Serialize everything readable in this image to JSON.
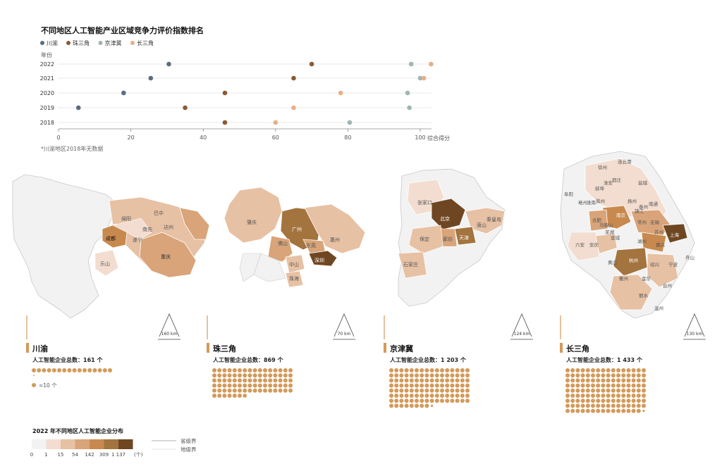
{
  "chart_data": {
    "type": "scatter",
    "title": "不同地区人工智能产业区域竞争力评价指数排名",
    "ylabel": "年份",
    "xlabel": "综合得分",
    "xlim": [
      0,
      100
    ],
    "x_ticks": [
      "0",
      "20",
      "40",
      "60",
      "80",
      "100"
    ],
    "years": [
      "2022",
      "2021",
      "2020",
      "2019",
      "2018"
    ],
    "series": [
      {
        "name": "川渝",
        "color": "#5a6e80",
        "values": [
          30.5,
          25.5,
          18,
          5.5,
          null
        ]
      },
      {
        "name": "珠三角",
        "color": "#8b5a33",
        "values": [
          70,
          65,
          46,
          35,
          46
        ]
      },
      {
        "name": "京津冀",
        "color": "#9fb5b4",
        "values": [
          97.5,
          100,
          96.5,
          97,
          80.5
        ]
      },
      {
        "name": "长三角",
        "color": "#e8ae86",
        "values": [
          103,
          101,
          78,
          65,
          60
        ]
      }
    ],
    "note": "*川渝地区2018年无数据"
  },
  "regions": [
    {
      "name": "川渝",
      "total_label": "人工智能企业总数：",
      "total": "161 个",
      "dots": 16.1,
      "scale": "160 km",
      "cities": [
        "巴中",
        "绵阳",
        "南充",
        "达州",
        "成都",
        "遂宁",
        "重庆",
        "乐山"
      ]
    },
    {
      "name": "珠三角",
      "total_label": "人工智能企业总数：",
      "total": "869 个",
      "dots": 86.9,
      "scale": "70 km",
      "cities": [
        "肇庆",
        "广州",
        "佛山",
        "东莞",
        "惠州",
        "中山",
        "深圳",
        "珠海"
      ]
    },
    {
      "name": "京津冀",
      "total_label": "人工智能企业总数：",
      "total": "1 203 个",
      "dots": 120.3,
      "scale": "124 km",
      "cities": [
        "张家口",
        "北京",
        "唐山",
        "秦皇岛",
        "天津",
        "保定",
        "廊坊",
        "石家庄"
      ]
    },
    {
      "name": "长三角",
      "total_label": "人工智能企业总数：",
      "total": "1 433 个",
      "dots": 143.3,
      "scale": "130 km",
      "cities": [
        "连云港",
        "徐州",
        "宿迁",
        "盐城",
        "淮安",
        "阜阳",
        "蚌埠",
        "扬州",
        "滁州",
        "南通",
        "南京",
        "镇江",
        "泰州",
        "合肥",
        "常州",
        "无锡",
        "马鞍山",
        "芜湖",
        "苏州",
        "上海",
        "宣城",
        "湖州",
        "嘉兴",
        "安庆",
        "黄山",
        "杭州",
        "绍兴",
        "宁波",
        "舟山",
        "衢州",
        "金华",
        "台州",
        "丽水",
        "温州",
        "六安",
        "淮南",
        "亳州"
      ]
    }
  ],
  "dot_legend": "=10 个",
  "map_legend": {
    "title": "2022 年不同地区人工智能企业分布",
    "breaks": [
      "0",
      "1",
      "15",
      "54",
      "142",
      "309",
      "1 137",
      "(个)"
    ],
    "colors": [
      "#f2f2f2",
      "#f3ddd0",
      "#e7c1a4",
      "#d9a479",
      "#c8894e",
      "#a3743e",
      "#6e4722"
    ],
    "boundary_province": "省级界",
    "boundary_city": "地级界"
  },
  "colors": {
    "dot": "#d39a5a",
    "accent": "#d39a5a"
  }
}
